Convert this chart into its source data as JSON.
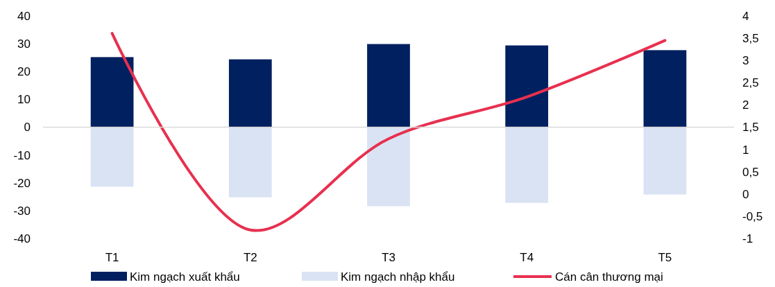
{
  "chart_data": {
    "type": "bar",
    "categories": [
      "T1",
      "T2",
      "T3",
      "T4",
      "T5"
    ],
    "series": [
      {
        "name": "Kim ngạch xuất khẩu",
        "color": "#002060",
        "values": [
          25.2,
          24.4,
          29.9,
          29.4,
          27.7
        ]
      },
      {
        "name": "Kim ngạch nhập khẩu",
        "color": "#dae3f3",
        "values": [
          -21.4,
          -25.2,
          -28.4,
          -27.2,
          -24.2
        ]
      },
      {
        "name": "Cán cân thương mại",
        "type": "line",
        "axis": "y2",
        "color": "#e8304f",
        "values": [
          3.61,
          -0.81,
          1.24,
          2.18,
          3.45
        ]
      }
    ],
    "ylim": [
      -40,
      40
    ],
    "yticks": [
      -40,
      -30,
      -20,
      -10,
      0,
      10,
      20,
      30,
      40
    ],
    "y2lim": [
      -1,
      4
    ],
    "y2ticks": [
      -1,
      {
        "value": -0.5,
        "label": "-0,5"
      },
      0,
      {
        "value": 0.5,
        "label": "0,5"
      },
      1,
      {
        "value": 1.5,
        "label": "1,5"
      },
      2,
      {
        "value": 2.5,
        "label": "2,5"
      },
      3,
      {
        "value": 3.5,
        "label": "3,5"
      },
      4
    ],
    "legend": "bottom",
    "marker": "none",
    "stacked": true
  }
}
